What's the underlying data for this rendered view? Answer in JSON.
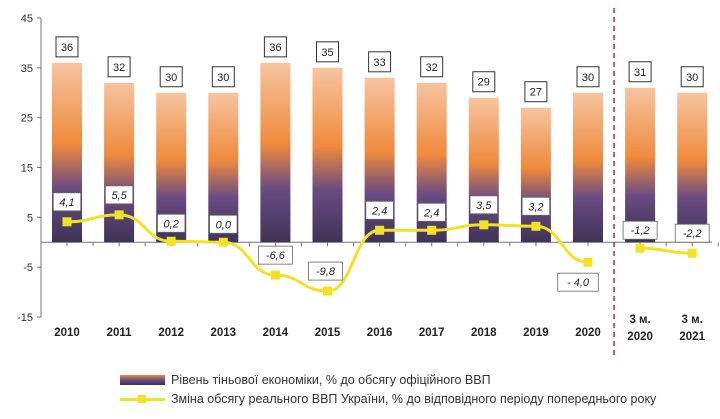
{
  "chart_data": {
    "type": "bar",
    "title": "",
    "xlabel": "",
    "ylabel": "",
    "ylim": [
      -15,
      45
    ],
    "yticks": [
      45,
      35,
      25,
      15,
      5,
      -5,
      -15
    ],
    "grid": false,
    "categories": [
      [
        "2010"
      ],
      [
        "2011"
      ],
      [
        "2012"
      ],
      [
        "2013"
      ],
      [
        "2014"
      ],
      [
        "2015"
      ],
      [
        "2016"
      ],
      [
        "2017"
      ],
      [
        "2018"
      ],
      [
        "2019"
      ],
      [
        "2020"
      ],
      [
        "3 м.",
        "2020"
      ],
      [
        "3 м.",
        "2021"
      ]
    ],
    "separator_after_index": 10,
    "series": [
      {
        "name": "Рівень тіньової економіки, % до обсягу офіційного ВВП",
        "type": "bar",
        "values": [
          36,
          32,
          30,
          30,
          36,
          35,
          33,
          32,
          29,
          27,
          30,
          31,
          30
        ],
        "labels": [
          "36",
          "32",
          "30",
          "30",
          "36",
          "35",
          "33",
          "32",
          "29",
          "27",
          "30",
          "31",
          "30"
        ],
        "color_top": "#f5b88e",
        "color_mid": "#f08a3c",
        "color_bottom": "#3e3356"
      },
      {
        "name": "Зміна обсягу реального ВВП України, % до відповідного періоду попереднього року",
        "type": "line",
        "values": [
          4.1,
          5.5,
          0.2,
          0.0,
          -6.6,
          -9.8,
          2.4,
          2.4,
          3.5,
          3.2,
          -4.0,
          -1.2,
          -2.2
        ],
        "labels": [
          "4,1",
          "5,5",
          "0,2",
          "0,0",
          "-6,6",
          "-9,8",
          "2,4",
          "2,4",
          "3,5",
          "3,2",
          "- 4,0",
          "-1,2",
          "-2,2"
        ],
        "color": "#f2e225",
        "segments": [
          [
            0,
            10
          ],
          [
            11,
            12
          ]
        ]
      }
    ],
    "legend": {
      "placement": "bottom",
      "entries": [
        "Рівень тіньової економіки, % до обсягу офіційного ВВП",
        "Зміна обсягу реального ВВП України, % до відповідного періоду попереднього року"
      ]
    },
    "separator_color": "#c0283a"
  }
}
